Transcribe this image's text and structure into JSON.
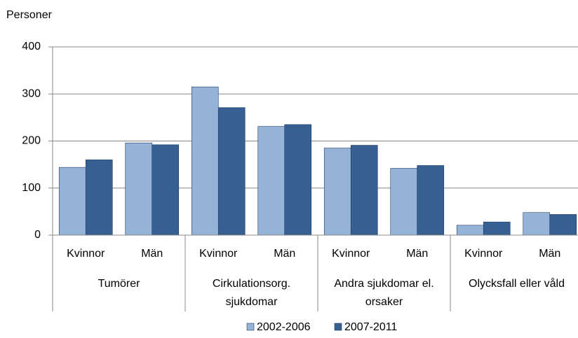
{
  "chart_data": {
    "type": "bar",
    "y_label": "Personer",
    "categories": [
      "Kvinnor",
      "Män",
      "Kvinnor",
      "Män",
      "Kvinnor",
      "Män",
      "Kvinnor",
      "Män"
    ],
    "groups": [
      "Tumörer",
      "Cirkulationsorg. sjukdomar",
      "Andra sjukdomar el. orsaker",
      "Olycksfall eller våld"
    ],
    "series": [
      {
        "name": "2002-2006",
        "color": "#95b3d7",
        "values": [
          144,
          196,
          315,
          231,
          185,
          142,
          21,
          48
        ]
      },
      {
        "name": "2007-2011",
        "color": "#366092",
        "values": [
          160,
          192,
          271,
          235,
          191,
          148,
          28,
          44
        ]
      }
    ],
    "ylim": [
      0,
      400
    ],
    "yticks": [
      0,
      100,
      200,
      300,
      400
    ],
    "grid": true,
    "legend": "bottom"
  }
}
